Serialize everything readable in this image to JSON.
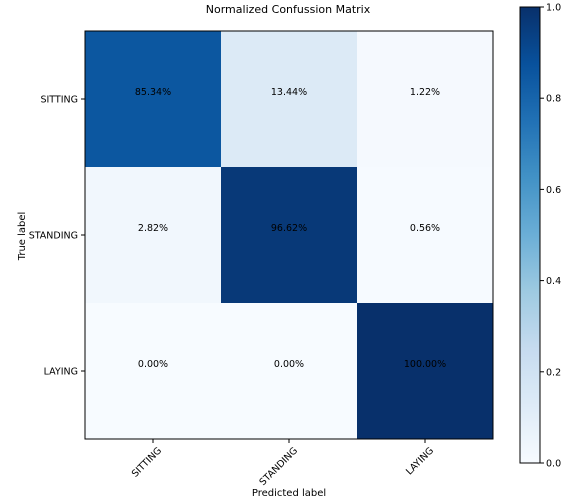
{
  "chart_data": {
    "type": "heatmap",
    "title": "Normalized Confussion Matrix",
    "xlabel": "Predicted label",
    "ylabel": "True label",
    "x_categories": [
      "SITTING",
      "STANDING",
      "LAYING"
    ],
    "y_categories": [
      "SITTING",
      "STANDING",
      "LAYING"
    ],
    "values": [
      [
        0.8534,
        0.1344,
        0.0122
      ],
      [
        0.0282,
        0.9662,
        0.0056
      ],
      [
        0.0,
        0.0,
        1.0
      ]
    ],
    "cell_labels": [
      [
        "85.34%",
        "13.44%",
        "1.22%"
      ],
      [
        "2.82%",
        "96.62%",
        "0.56%"
      ],
      [
        "0.00%",
        "0.00%",
        "100.00%"
      ]
    ],
    "colormap": "Blues",
    "colorbar": {
      "range": [
        0,
        1
      ],
      "ticks": [
        0.0,
        0.2,
        0.4,
        0.6,
        0.8,
        1.0
      ],
      "tick_labels": [
        "0.0",
        "0.2",
        "0.4",
        "0.6",
        "0.8",
        "1.0"
      ]
    }
  }
}
